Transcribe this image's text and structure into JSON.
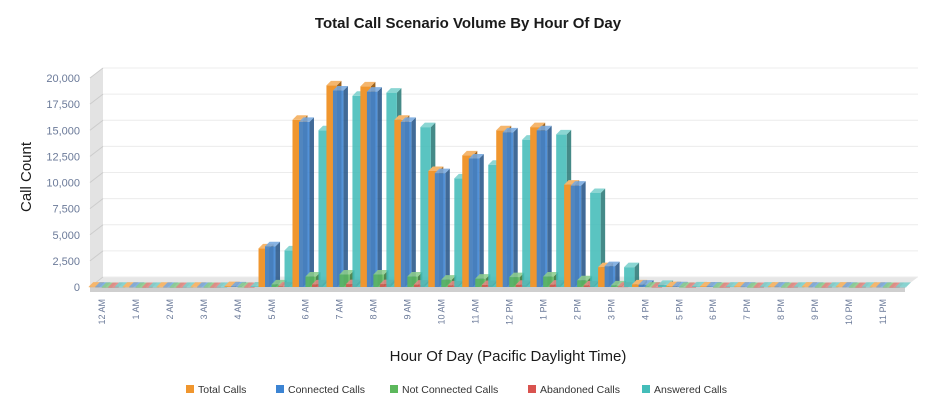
{
  "chart_data": {
    "type": "bar",
    "title": "Total Call Scenario Volume By Hour Of Day",
    "xlabel": "Hour Of Day (Pacific Daylight Time)",
    "ylabel": "Call Count",
    "ylim": [
      0,
      20000
    ],
    "yticks": [
      0,
      2500,
      5000,
      7500,
      10000,
      12500,
      15000,
      17500,
      20000
    ],
    "ytick_labels": [
      "0",
      "2,500",
      "5,000",
      "7,500",
      "10,000",
      "12,500",
      "15,000",
      "17,500",
      "20,000"
    ],
    "grid": true,
    "legend_position": "bottom",
    "categories": [
      "12 AM",
      "1 AM",
      "2 AM",
      "3 AM",
      "4 AM",
      "5 AM",
      "6 AM",
      "7 AM",
      "8 AM",
      "9 AM",
      "10 AM",
      "11 AM",
      "12 PM",
      "1 PM",
      "2 PM",
      "3 PM",
      "4 PM",
      "5 PM",
      "6 PM",
      "7 PM",
      "8 PM",
      "9 PM",
      "10 PM",
      "11 PM"
    ],
    "series": [
      {
        "name": "Total Calls",
        "color": "#f0962e",
        "values": [
          30,
          25,
          20,
          20,
          80,
          3700,
          16000,
          19300,
          19200,
          16000,
          11100,
          12600,
          15000,
          15300,
          9800,
          1900,
          250,
          80,
          50,
          40,
          35,
          30,
          30,
          25
        ]
      },
      {
        "name": "Connected Calls",
        "color": "#3c84d3",
        "values": [
          25,
          20,
          15,
          15,
          60,
          3900,
          15800,
          18800,
          18700,
          15800,
          10900,
          12300,
          14800,
          15000,
          9700,
          2000,
          230,
          70,
          45,
          35,
          30,
          25,
          25,
          20
        ]
      },
      {
        "name": "Not Connected Calls",
        "color": "#5cb85c",
        "values": [
          5,
          5,
          5,
          5,
          15,
          250,
          1000,
          1200,
          1200,
          1000,
          700,
          800,
          950,
          1000,
          650,
          150,
          30,
          10,
          5,
          5,
          5,
          5,
          5,
          5
        ]
      },
      {
        "name": "Abandoned Calls",
        "color": "#d9534f",
        "values": [
          2,
          2,
          2,
          2,
          5,
          60,
          250,
          280,
          280,
          230,
          160,
          190,
          220,
          230,
          150,
          35,
          8,
          3,
          2,
          2,
          2,
          2,
          2,
          2
        ]
      },
      {
        "name": "Answered Calls",
        "color": "#44bdb9",
        "values": [
          20,
          15,
          10,
          10,
          50,
          3500,
          15000,
          18300,
          18600,
          15300,
          10400,
          11700,
          14100,
          14600,
          9000,
          1900,
          200,
          60,
          40,
          30,
          25,
          20,
          20,
          15
        ]
      }
    ]
  }
}
